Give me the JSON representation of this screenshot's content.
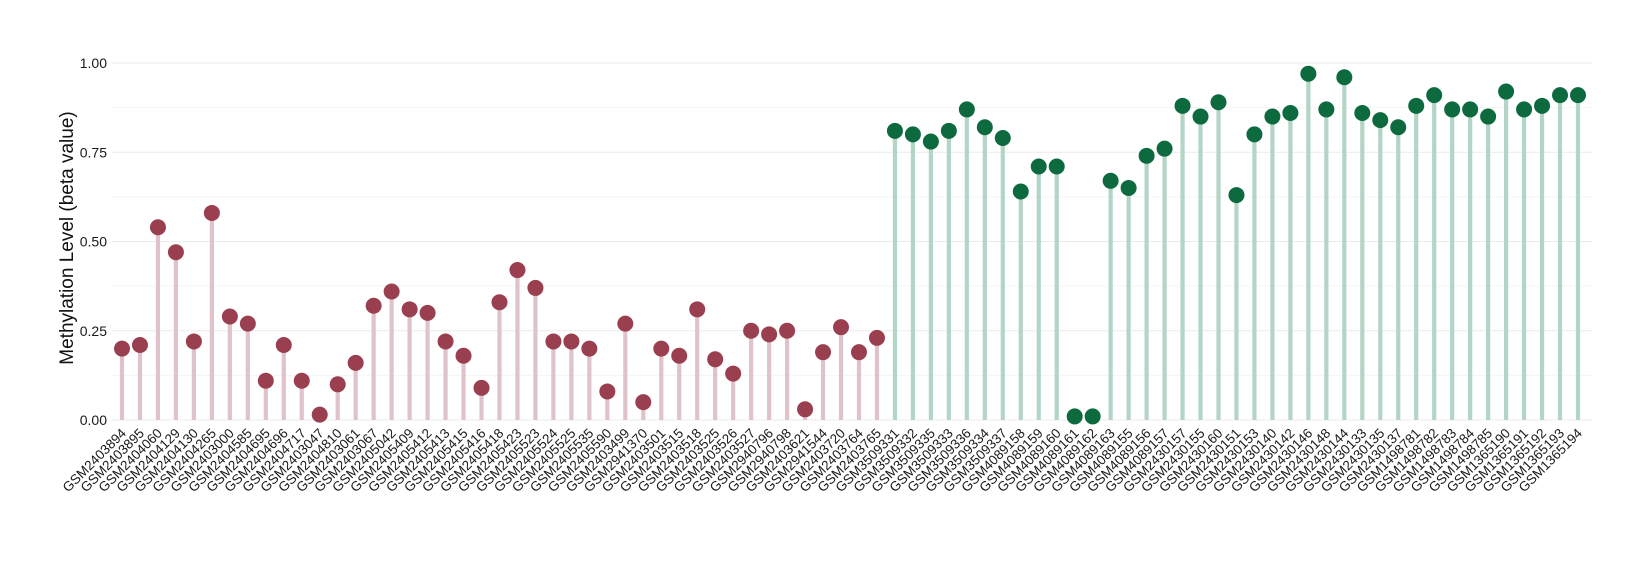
{
  "chart_data": {
    "type": "lollipop",
    "title": "",
    "xlabel": "",
    "ylabel": "Methylation Level (beta value)",
    "ylim": [
      0,
      1.0
    ],
    "yticks": [
      0.0,
      0.25,
      0.5,
      0.75,
      1.0
    ],
    "ytick_labels": [
      "0.00",
      "0.25",
      "0.50",
      "0.75",
      "1.00"
    ],
    "grid": true,
    "legend": "none",
    "colors": {
      "group1_point": "#9a3f50",
      "group1_stem": "#e0c3ca",
      "group2_point": "#0d6a3f",
      "group2_stem": "#b3d5c5"
    },
    "group_split_index": 43,
    "categories": [
      "GSM2403894",
      "GSM2403895",
      "GSM2404060",
      "GSM2404129",
      "GSM2404130",
      "GSM2404265",
      "GSM2403000",
      "GSM2404585",
      "GSM2404695",
      "GSM2404696",
      "GSM2404717",
      "GSM2403047",
      "GSM2404810",
      "GSM2403061",
      "GSM2403067",
      "GSM2405042",
      "GSM2405409",
      "GSM2405412",
      "GSM2405413",
      "GSM2405415",
      "GSM2405416",
      "GSM2405418",
      "GSM2405423",
      "GSM2405523",
      "GSM2405524",
      "GSM2405525",
      "GSM2405535",
      "GSM2405590",
      "GSM2403499",
      "GSM2941370",
      "GSM2403501",
      "GSM2403515",
      "GSM2403518",
      "GSM2403525",
      "GSM2403526",
      "GSM2403527",
      "GSM2940796",
      "GSM2940798",
      "GSM2403621",
      "GSM2941544",
      "GSM2403720",
      "GSM2403764",
      "GSM2403765",
      "GSM3509331",
      "GSM3509332",
      "GSM3509335",
      "GSM3509333",
      "GSM3509336",
      "GSM3509334",
      "GSM3509337",
      "GSM4089158",
      "GSM4089159",
      "GSM4089160",
      "GSM4089161",
      "GSM4089162",
      "GSM4089163",
      "GSM4089155",
      "GSM4089156",
      "GSM4089157",
      "GSM2430157",
      "GSM2430155",
      "GSM2430160",
      "GSM2430151",
      "GSM2430153",
      "GSM2430140",
      "GSM2430142",
      "GSM2430146",
      "GSM2430148",
      "GSM2430144",
      "GSM2430133",
      "GSM2430135",
      "GSM2430137",
      "GSM1498781",
      "GSM1498782",
      "GSM1498783",
      "GSM1498784",
      "GSM1498785",
      "GSM1365190",
      "GSM1365191",
      "GSM1365192",
      "GSM1365193",
      "GSM1365194"
    ],
    "values": [
      0.2,
      0.21,
      0.54,
      0.47,
      0.22,
      0.58,
      0.29,
      0.27,
      0.11,
      0.21,
      0.11,
      0.015,
      0.1,
      0.16,
      0.32,
      0.36,
      0.31,
      0.3,
      0.22,
      0.18,
      0.09,
      0.33,
      0.42,
      0.37,
      0.22,
      0.22,
      0.2,
      0.08,
      0.27,
      0.05,
      0.2,
      0.18,
      0.31,
      0.17,
      0.13,
      0.25,
      0.24,
      0.25,
      0.03,
      0.19,
      0.26,
      0.19,
      0.23,
      0.81,
      0.8,
      0.78,
      0.81,
      0.87,
      0.82,
      0.79,
      0.64,
      0.71,
      0.71,
      0.01,
      0.01,
      0.67,
      0.65,
      0.74,
      0.76,
      0.88,
      0.85,
      0.89,
      0.63,
      0.8,
      0.85,
      0.86,
      0.97,
      0.87,
      0.96,
      0.86,
      0.84,
      0.82,
      0.88,
      0.91,
      0.87,
      0.87,
      0.85,
      0.92,
      0.87,
      0.88,
      0.91,
      0.91
    ]
  }
}
